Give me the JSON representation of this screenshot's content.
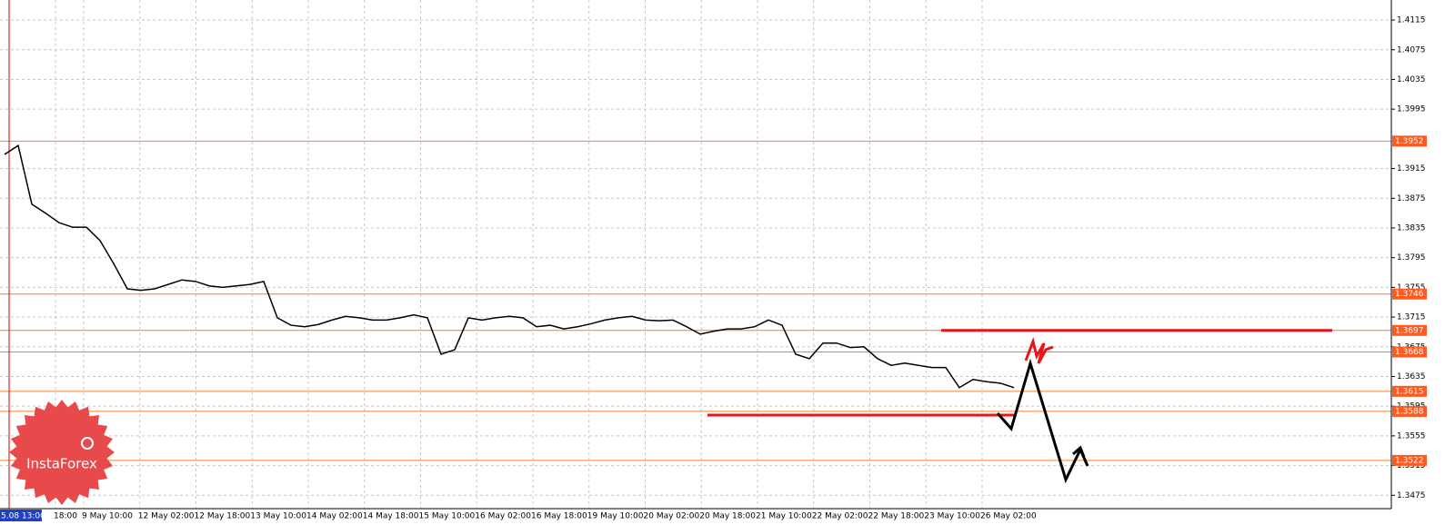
{
  "chart_data": {
    "type": "line",
    "color": "#000000",
    "values": [
      1.3934,
      1.3946,
      1.3867,
      1.3855,
      1.3842,
      1.3836,
      1.3836,
      1.3818,
      1.3787,
      1.3753,
      1.3751,
      1.3753,
      1.3759,
      1.3765,
      1.3763,
      1.3757,
      1.3755,
      1.3757,
      1.3759,
      1.3763,
      1.3714,
      1.3704,
      1.3702,
      1.3705,
      1.3711,
      1.3716,
      1.3714,
      1.3711,
      1.3711,
      1.3714,
      1.3718,
      1.3714,
      1.3665,
      1.3671,
      1.3714,
      1.3711,
      1.3714,
      1.3716,
      1.3714,
      1.3702,
      1.3704,
      1.3699,
      1.3702,
      1.3706,
      1.3711,
      1.3714,
      1.3716,
      1.3711,
      1.371,
      1.3711,
      1.3702,
      1.3692,
      1.3696,
      1.3699,
      1.3699,
      1.3702,
      1.3711,
      1.3704,
      1.3665,
      1.3659,
      1.368,
      1.368,
      1.3674,
      1.3675,
      1.3659,
      1.365,
      1.3653,
      1.365,
      1.3647,
      1.3647,
      1.362,
      1.3631,
      1.3628,
      1.3626,
      1.362
    ],
    "x_labels": [
      "5.08 13:00",
      "18:00",
      "9 May 10:00",
      "12 May 02:00",
      "12 May 18:00",
      "13 May 10:00",
      "14 May 02:00",
      "14 May 18:00",
      "15 May 10:00",
      "16 May 02:00",
      "16 May 18:00",
      "19 May 10:00",
      "20 May 02:00",
      "20 May 18:00",
      "21 May 10:00",
      "22 May 02:00",
      "22 May 18:00",
      "23 May 10:00",
      "26 May 02:00"
    ],
    "ylim": [
      1.3457,
      1.4142
    ],
    "yticks": [
      1.4115,
      1.4075,
      1.4035,
      1.3995,
      1.3915,
      1.3875,
      1.3835,
      1.3795,
      1.3755,
      1.3715,
      1.3675,
      1.3635,
      1.3595,
      1.3555,
      1.3515,
      1.3475
    ],
    "levels": [
      1.3952,
      1.3746,
      1.3697,
      1.3668,
      1.3615,
      1.3588,
      1.3522
    ],
    "level_color": "#ff7f27",
    "segments": [
      1.3697,
      1.3583
    ],
    "segment_color": "#e8141b",
    "grid": true,
    "logo": "InstaForex"
  }
}
